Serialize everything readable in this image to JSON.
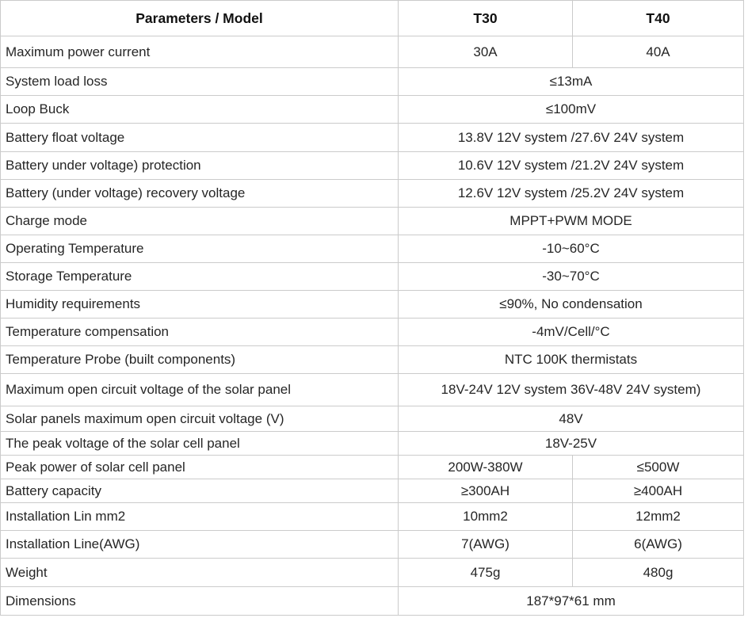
{
  "table": {
    "header": {
      "parameters": "Parameters / Model",
      "t30": "T30",
      "t40": "T40"
    },
    "rows": [
      {
        "param": "Maximum power current",
        "t30": "30A",
        "t40": "40A"
      },
      {
        "param": "System load loss",
        "value": "≤13mA"
      },
      {
        "param": "Loop Buck",
        "value": "≤100mV"
      },
      {
        "param": "Battery float voltage",
        "value": "13.8V 12V system /27.6V 24V system"
      },
      {
        "param": "Battery under voltage) protection",
        "value": "10.6V 12V system /21.2V 24V system"
      },
      {
        "param": "Battery (under voltage) recovery voltage",
        "value": "12.6V 12V system /25.2V 24V system"
      },
      {
        "param": "Charge mode",
        "value": "MPPT+PWM MODE"
      },
      {
        "param": "Operating Temperature",
        "value": "-10~60°C"
      },
      {
        "param": "Storage Temperature",
        "value": "-30~70°C"
      },
      {
        "param": "Humidity requirements",
        "value": "≤90%, No condensation"
      },
      {
        "param": "Temperature compensation",
        "value": "-4mV/Cell/°C"
      },
      {
        "param": "Temperature Probe (built components)",
        "value": "NTC 100K thermistats"
      },
      {
        "param": "Maximum open circuit voltage of the solar panel",
        "value": "18V-24V 12V system 36V-48V 24V system)"
      },
      {
        "param": "Solar panels maximum open circuit voltage (V)",
        "value": "48V"
      },
      {
        "param": "The peak voltage of the solar cell panel",
        "value": "18V-25V"
      },
      {
        "param": "Peak power of solar cell panel",
        "t30": "200W-380W",
        "t40": "≤500W"
      },
      {
        "param": "Battery capacity",
        "t30": "≥300AH",
        "t40": "≥400AH"
      },
      {
        "param": "Installation Lin mm2",
        "t30": "10mm2",
        "t40": "12mm2"
      },
      {
        "param": "Installation Line(AWG)",
        "t30": "7(AWG)",
        "t40": "6(AWG)"
      },
      {
        "param": "Weight",
        "t30": "475g",
        "t40": "480g"
      },
      {
        "param": "Dimensions",
        "value": "187*97*61 mm"
      }
    ],
    "colors": {
      "border": "#cbcbcb",
      "header_text": "#111111",
      "body_text": "#262626",
      "background": "#ffffff"
    }
  }
}
